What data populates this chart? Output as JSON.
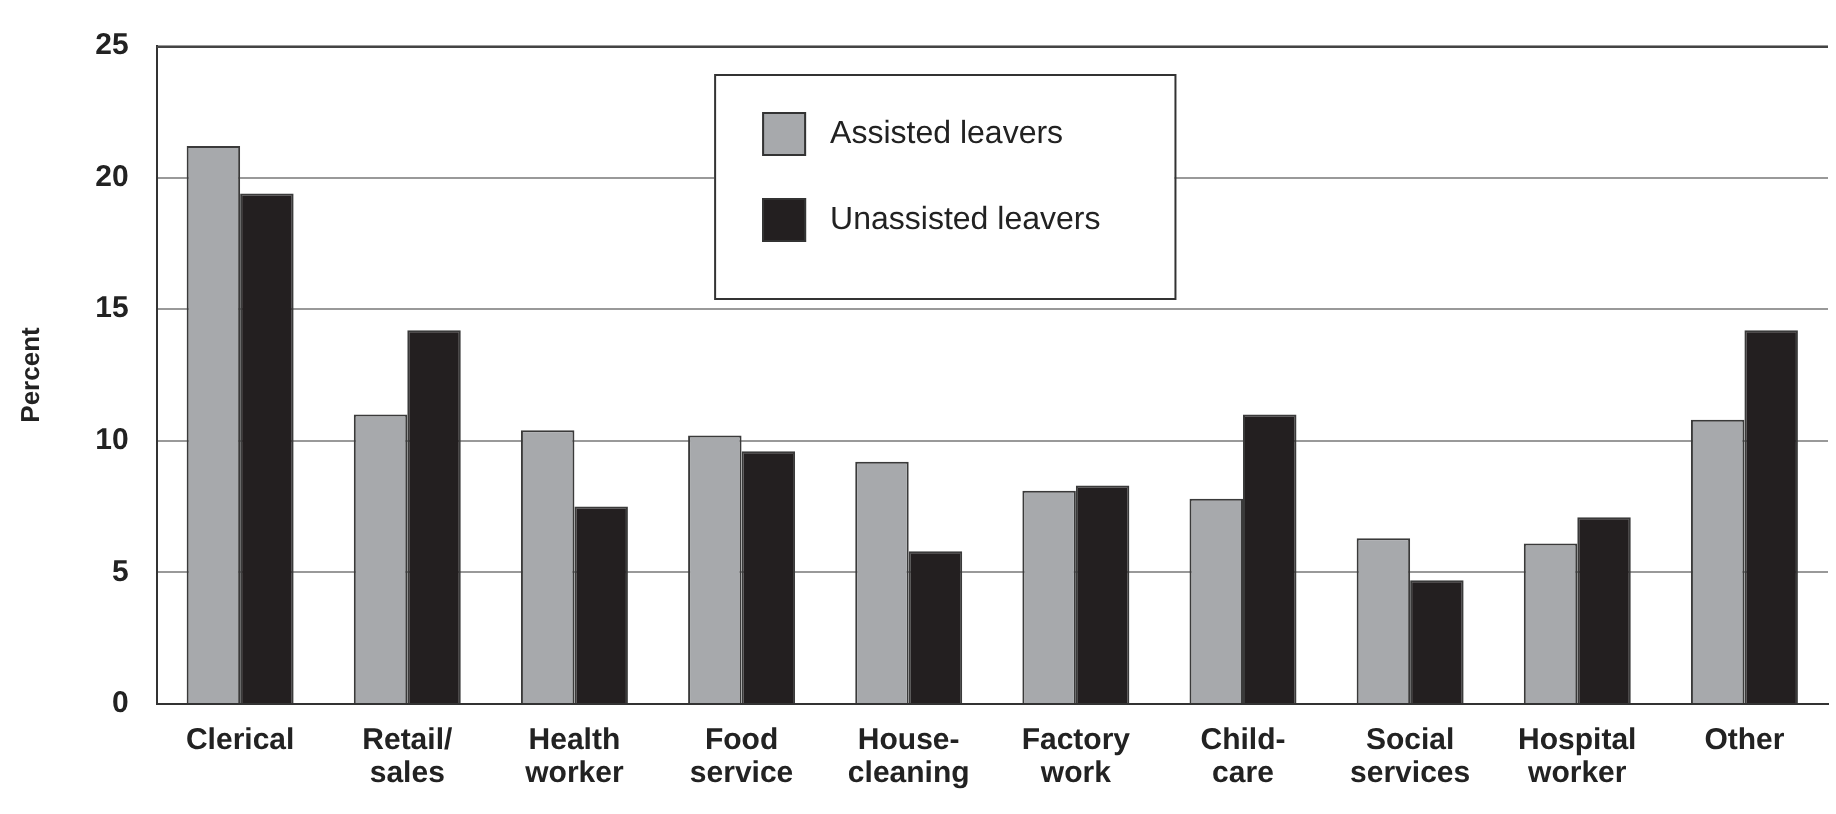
{
  "chart_data": {
    "type": "bar",
    "ylabel": "Percent",
    "categories": [
      "Clerical",
      "Retail/\nsales",
      "Health\nworker",
      "Food\nservice",
      "House-\ncleaning",
      "Factory\nwork",
      "Child-\ncare",
      "Social\nservices",
      "Hospital\nworker",
      "Other"
    ],
    "series": [
      {
        "name": "Assisted leavers",
        "color": "#a7a9ac",
        "values": [
          21.2,
          11.0,
          10.4,
          10.2,
          9.2,
          8.1,
          7.8,
          6.3,
          6.1,
          10.8
        ]
      },
      {
        "name": "Unassisted leavers",
        "color": "#231f20",
        "values": [
          19.4,
          14.2,
          7.5,
          9.6,
          5.8,
          8.3,
          11.0,
          4.7,
          7.1,
          14.2
        ]
      }
    ],
    "ylim": [
      0,
      25
    ],
    "yticks": [
      0,
      5,
      10,
      15,
      20,
      25
    ],
    "grid": "y",
    "legend": "top center"
  }
}
